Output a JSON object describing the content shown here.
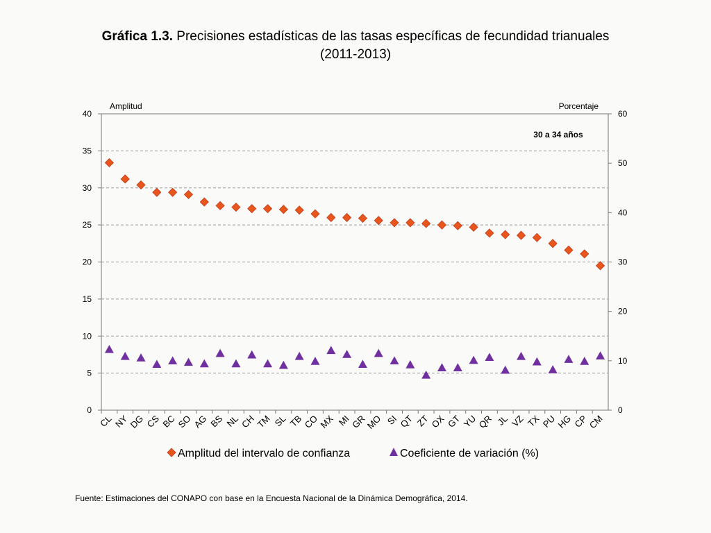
{
  "title": {
    "prefix": "Gráfica 1.3.",
    "line1": " Precisiones estadísticas de las tasas específicas de fecundidad trianuales",
    "line2": "(2011-2013)"
  },
  "source": "Fuente: Estimaciones del CONAPO con base en la Encuesta Nacional de la Dinámica Demográfica, 2014.",
  "colors": {
    "diamond_fill": "#e8561c",
    "diamond_stroke": "#c0391a",
    "triangle_fill": "#7030a0",
    "grid": "#9a9a9a",
    "axis": "#777777"
  },
  "chart_data": {
    "type": "scatter",
    "annotation": "30 a 34 años",
    "y_left_label": "Amplitud",
    "y_right_label": "Porcentaje",
    "y_left_range": [
      0,
      40
    ],
    "y_left_ticks": [
      0,
      5,
      10,
      15,
      20,
      25,
      30,
      35,
      40
    ],
    "y_right_range": [
      0,
      60
    ],
    "y_right_ticks": [
      0,
      10,
      20,
      30,
      40,
      50,
      60
    ],
    "grid": true,
    "categories": [
      "CL",
      "NY",
      "DG",
      "CS",
      "BC",
      "SO",
      "AG",
      "BS",
      "NL",
      "CH",
      "TM",
      "SL",
      "TB",
      "CO",
      "MX",
      "MI",
      "GR",
      "MO",
      "SI",
      "QT",
      "ZT",
      "OX",
      "GT",
      "YU",
      "QR",
      "JL",
      "VZ",
      "TX",
      "PU",
      "HG",
      "CP",
      "CM"
    ],
    "series": [
      {
        "name": "Amplitud del intervalo de confianza",
        "axis": "left",
        "marker": "diamond",
        "values": [
          33.4,
          31.2,
          30.4,
          29.4,
          29.4,
          29.1,
          28.1,
          27.6,
          27.4,
          27.2,
          27.2,
          27.1,
          27.0,
          26.5,
          26.0,
          26.0,
          25.9,
          25.6,
          25.3,
          25.3,
          25.2,
          25.0,
          24.9,
          24.7,
          23.9,
          23.7,
          23.6,
          23.3,
          22.5,
          21.6,
          21.1,
          19.5
        ]
      },
      {
        "name": "Coeficiente de variación (%)",
        "axis": "right",
        "marker": "triangle",
        "values": [
          12.3,
          10.9,
          10.6,
          9.3,
          10.0,
          9.7,
          9.4,
          11.5,
          9.4,
          11.2,
          9.4,
          9.1,
          10.9,
          9.9,
          12.1,
          11.3,
          9.3,
          11.5,
          10.0,
          9.2,
          7.1,
          8.6,
          8.6,
          10.1,
          10.7,
          8.1,
          10.9,
          9.8,
          8.2,
          10.3,
          9.9,
          11.0
        ]
      }
    ],
    "legend_position": "bottom"
  }
}
